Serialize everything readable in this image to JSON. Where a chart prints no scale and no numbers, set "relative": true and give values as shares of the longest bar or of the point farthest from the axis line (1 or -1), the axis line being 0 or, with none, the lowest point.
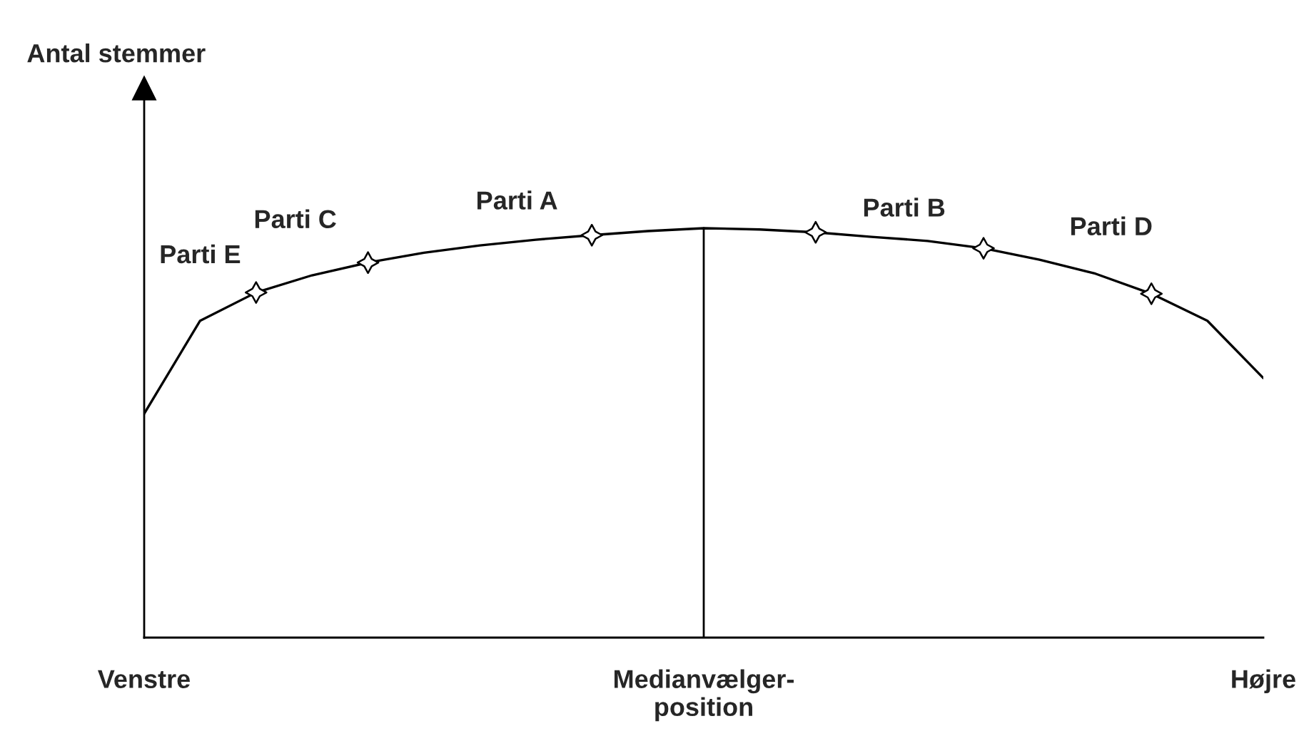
{
  "chart_data": {
    "type": "line",
    "relative": true,
    "categories": [
      "Venstre",
      null,
      null,
      null,
      null,
      null,
      null,
      null,
      null,
      null,
      "Medianvælger-\nposition",
      null,
      null,
      null,
      null,
      null,
      null,
      null,
      null,
      null,
      "Højre"
    ],
    "series": [
      {
        "color": "#000000",
        "values": [
          0.547,
          0.774,
          0.843,
          0.885,
          0.916,
          0.94,
          0.958,
          0.972,
          0.983,
          0.993,
          1,
          0.997,
          0.99,
          0.979,
          0.969,
          0.951,
          0.923,
          0.889,
          0.84,
          0.774,
          0.634
        ]
      },
      {
        "type": "scatter",
        "color": "#000000",
        "marker": "star",
        "values": [
          null,
          null,
          0.843,
          null,
          0.916,
          null,
          null,
          null,
          0.983,
          null,
          null,
          null,
          0.99,
          null,
          null,
          0.951,
          null,
          null,
          0.84,
          null,
          null
        ]
      }
    ],
    "ref_lines": [
      {
        "axis": "x",
        "value": "Medianvælger-\nposition",
        "color": "#000000"
      }
    ],
    "annotations": [
      "Antal stemmer",
      "Parti E",
      "Parti C",
      "Parti A",
      "Parti B",
      "Parti D"
    ],
    "grid": false,
    "legend": false
  }
}
